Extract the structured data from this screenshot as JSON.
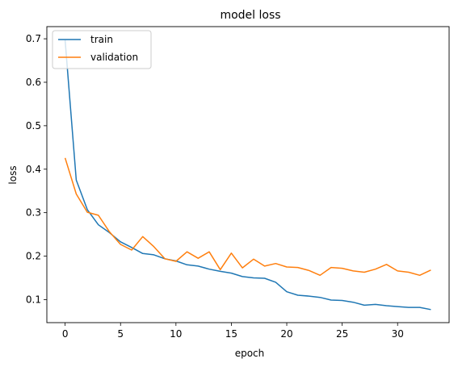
{
  "chart_data": {
    "type": "line",
    "title": "model loss",
    "xlabel": "epoch",
    "ylabel": "loss",
    "xlim": [
      -1.65,
      34.65
    ],
    "ylim": [
      0.047,
      0.728
    ],
    "xticks": [
      0,
      5,
      10,
      15,
      20,
      25,
      30
    ],
    "yticks": [
      0.1,
      0.2,
      0.3,
      0.4,
      0.5,
      0.6,
      0.7
    ],
    "grid": false,
    "legend_position": "top-left",
    "x": [
      0,
      1,
      2,
      3,
      4,
      5,
      6,
      7,
      8,
      9,
      10,
      11,
      12,
      13,
      14,
      15,
      16,
      17,
      18,
      19,
      20,
      21,
      22,
      23,
      24,
      25,
      26,
      27,
      28,
      29,
      30,
      31,
      32,
      33
    ],
    "series": [
      {
        "name": "train",
        "color": "#1f77b4",
        "values": [
          0.697,
          0.375,
          0.307,
          0.272,
          0.254,
          0.233,
          0.22,
          0.206,
          0.203,
          0.194,
          0.189,
          0.18,
          0.177,
          0.17,
          0.165,
          0.161,
          0.153,
          0.15,
          0.149,
          0.14,
          0.118,
          0.11,
          0.108,
          0.105,
          0.099,
          0.098,
          0.094,
          0.087,
          0.089,
          0.086,
          0.084,
          0.082,
          0.082,
          0.077
        ]
      },
      {
        "name": "validation",
        "color": "#ff7f0e",
        "values": [
          0.426,
          0.343,
          0.301,
          0.294,
          0.256,
          0.227,
          0.214,
          0.245,
          0.222,
          0.194,
          0.188,
          0.21,
          0.195,
          0.21,
          0.169,
          0.207,
          0.173,
          0.193,
          0.177,
          0.183,
          0.175,
          0.174,
          0.167,
          0.156,
          0.174,
          0.172,
          0.166,
          0.163,
          0.17,
          0.181,
          0.166,
          0.163,
          0.156,
          0.168
        ]
      }
    ]
  }
}
